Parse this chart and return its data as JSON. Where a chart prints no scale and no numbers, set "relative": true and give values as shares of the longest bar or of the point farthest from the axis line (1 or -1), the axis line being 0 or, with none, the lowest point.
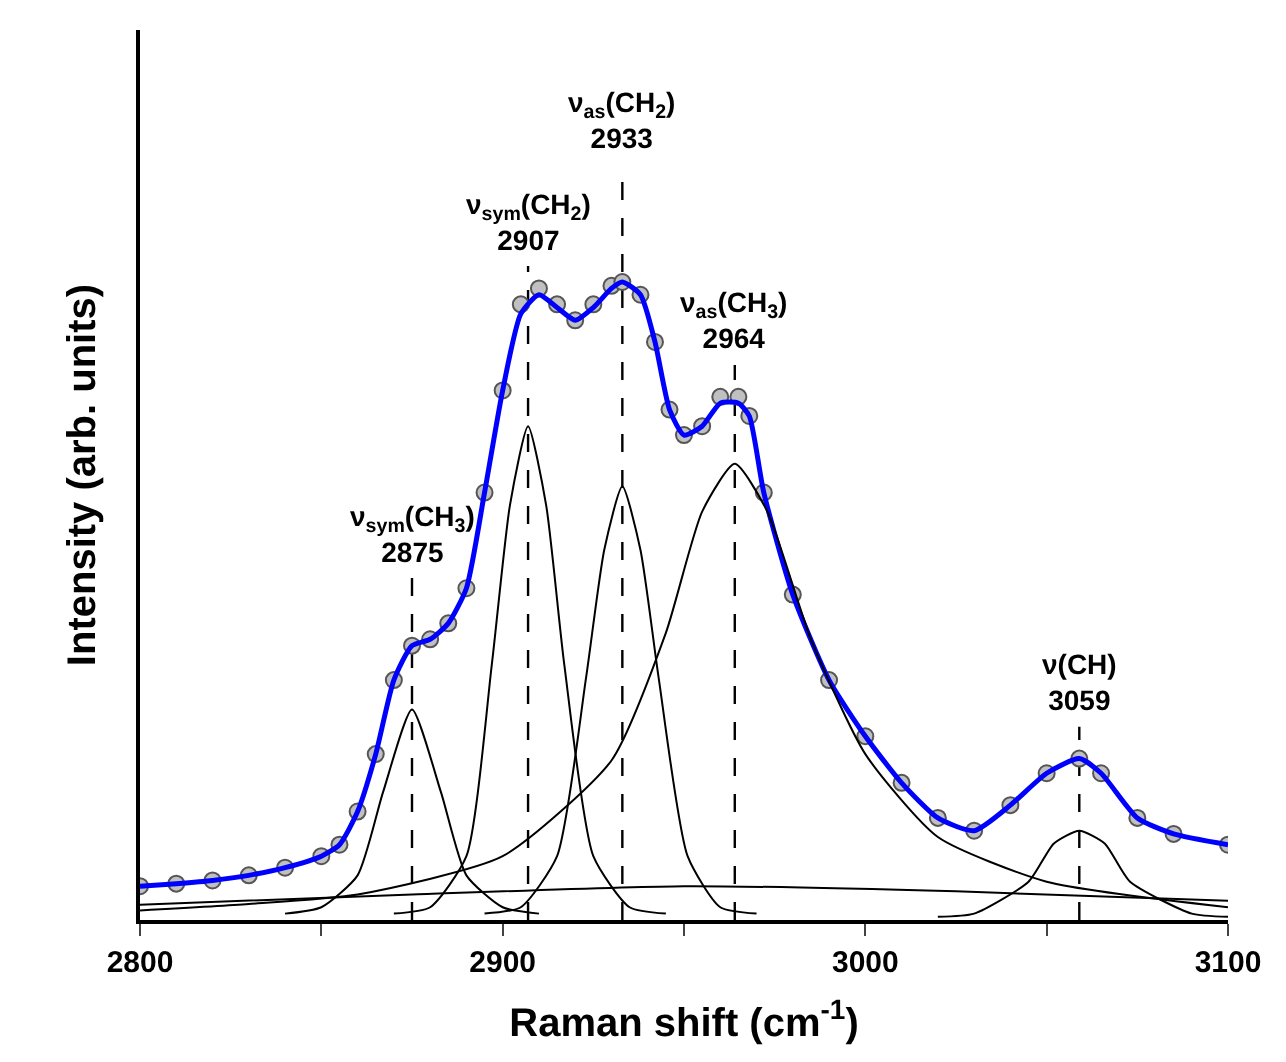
{
  "chart_data": {
    "type": "line",
    "relative": true,
    "xlabel": "Raman shift (cm$^{-1}$)",
    "ylabel": "Intensity (arb. units)",
    "xlim": [
      2800,
      3100
    ],
    "xticks": [
      2800,
      {
        "value": 2850,
        "label": null
      },
      2900,
      {
        "value": 2950,
        "label": null
      },
      3000,
      {
        "value": 3050,
        "label": null
      },
      3100
    ],
    "grid": false,
    "line_style": "solid",
    "series": [
      {
        "type": "scatter",
        "marker": "circle",
        "color": "#c0c0c0",
        "x": [
          2800,
          2810,
          2820,
          2830,
          2840,
          2850,
          2855,
          2860,
          2865,
          2870,
          2875,
          2880,
          2885,
          2890,
          2895,
          2900,
          2905,
          2910,
          2915,
          2920,
          2925,
          2930,
          2933,
          2938,
          2942,
          2946,
          2950,
          2955,
          2960,
          2965,
          2968,
          2972,
          2980,
          2990,
          3000,
          3010,
          3020,
          3030,
          3040,
          3050,
          3059,
          3065,
          3075,
          3085,
          3100
        ],
        "values": [
          0.053,
          0.057,
          0.062,
          0.07,
          0.082,
          0.1,
          0.118,
          0.17,
          0.26,
          0.376,
          0.43,
          0.44,
          0.465,
          0.52,
          0.67,
          0.83,
          0.965,
          0.99,
          0.965,
          0.94,
          0.965,
          0.994,
          1.0,
          0.98,
          0.906,
          0.8,
          0.76,
          0.774,
          0.82,
          0.82,
          0.79,
          0.67,
          0.51,
          0.376,
          0.288,
          0.215,
          0.16,
          0.14,
          0.18,
          0.23,
          0.253,
          0.23,
          0.16,
          0.135,
          0.118
        ]
      },
      {
        "marker": "none",
        "color": "#0000ff",
        "x": [
          2800,
          2810,
          2820,
          2830,
          2840,
          2850,
          2855,
          2860,
          2865,
          2870,
          2875,
          2880,
          2885,
          2890,
          2895,
          2900,
          2905,
          2910,
          2915,
          2920,
          2925,
          2930,
          2933,
          2938,
          2942,
          2946,
          2950,
          2955,
          2960,
          2965,
          2968,
          2972,
          2980,
          2990,
          3000,
          3010,
          3020,
          3030,
          3040,
          3050,
          3059,
          3065,
          3075,
          3085,
          3100
        ],
        "values": [
          0.053,
          0.057,
          0.062,
          0.07,
          0.082,
          0.1,
          0.118,
          0.17,
          0.26,
          0.376,
          0.43,
          0.44,
          0.465,
          0.52,
          0.67,
          0.83,
          0.95,
          0.98,
          0.96,
          0.94,
          0.96,
          0.99,
          1.0,
          0.98,
          0.906,
          0.8,
          0.76,
          0.774,
          0.81,
          0.81,
          0.79,
          0.67,
          0.51,
          0.376,
          0.288,
          0.215,
          0.16,
          0.14,
          0.18,
          0.23,
          0.253,
          0.23,
          0.16,
          0.135,
          0.118
        ]
      },
      {
        "marker": "none",
        "color": "#000000",
        "x": [
          2840,
          2850,
          2860,
          2867,
          2875,
          2883,
          2890,
          2900,
          2910
        ],
        "values": [
          0.01,
          0.02,
          0.07,
          0.2,
          0.33,
          0.2,
          0.07,
          0.02,
          0.01
        ]
      },
      {
        "marker": "none",
        "color": "#000000",
        "x": [
          2870,
          2880,
          2890,
          2897,
          2902,
          2907,
          2912,
          2917,
          2925,
          2935,
          2945
        ],
        "values": [
          0.01,
          0.02,
          0.1,
          0.4,
          0.65,
          0.774,
          0.65,
          0.4,
          0.1,
          0.02,
          0.01
        ]
      },
      {
        "marker": "none",
        "color": "#000000",
        "x": [
          2895,
          2905,
          2915,
          2923,
          2928,
          2933,
          2938,
          2943,
          2951,
          2960,
          2970
        ],
        "values": [
          0.01,
          0.02,
          0.1,
          0.38,
          0.58,
          0.68,
          0.58,
          0.38,
          0.1,
          0.02,
          0.01
        ]
      },
      {
        "marker": "none",
        "color": "#000000",
        "x": [
          2800,
          2830,
          2860,
          2900,
          2930,
          2945,
          2955,
          2964,
          2973,
          2985,
          3000,
          3020,
          3050,
          3100
        ],
        "values": [
          0.015,
          0.025,
          0.04,
          0.1,
          0.25,
          0.45,
          0.64,
          0.715,
          0.64,
          0.44,
          0.26,
          0.13,
          0.06,
          0.02
        ]
      },
      {
        "marker": "none",
        "color": "#000000",
        "x": [
          3020,
          3030,
          3045,
          3052,
          3059,
          3066,
          3073,
          3090,
          3100
        ],
        "values": [
          0.005,
          0.01,
          0.06,
          0.12,
          0.14,
          0.12,
          0.06,
          0.01,
          0.005
        ]
      },
      {
        "marker": "none",
        "color": "#000000",
        "x": [
          2800,
          2875,
          2950,
          3025,
          3100
        ],
        "values": [
          0.024,
          0.04,
          0.053,
          0.045,
          0.03
        ]
      }
    ],
    "ref_lines": [
      {
        "axis": "x",
        "value": 2875,
        "color": "#000000",
        "line_style": "dashed",
        "label": "ν$_{sym}$(CH$_{3}$)\n2875"
      },
      {
        "axis": "x",
        "value": 2907,
        "color": "#000000",
        "line_style": "dashed",
        "label": "ν$_{sym}$(CH$_{2}$)\n2907"
      },
      {
        "axis": "x",
        "value": 2933,
        "color": "#000000",
        "line_style": "dashed",
        "label": "ν$_{as}$(CH$_{2}$)\n2933"
      },
      {
        "axis": "x",
        "value": 2964,
        "color": "#000000",
        "line_style": "dashed",
        "label": "ν$_{as}$(CH$_{3}$)\n2964"
      },
      {
        "axis": "x",
        "value": 3059,
        "color": "#000000",
        "line_style": "dashed",
        "label": "ν(CH)\n3059"
      }
    ]
  }
}
